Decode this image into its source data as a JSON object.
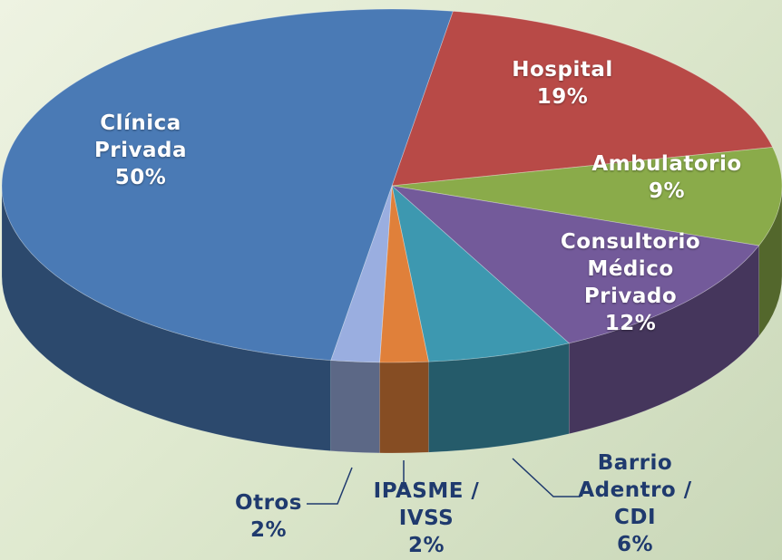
{
  "chart_data": {
    "type": "pie",
    "categories": [
      "Hospital",
      "Ambulatorio",
      "Consultorio Médico Privado",
      "Barrio Adentro / CDI",
      "IPASME / IVSS",
      "Otros",
      "Clínica Privada"
    ],
    "values": [
      19,
      9,
      12,
      6,
      2,
      2,
      50
    ],
    "value_labels": [
      "19%",
      "9%",
      "12%",
      "6%",
      "2%",
      "2%",
      "50%"
    ],
    "colors": [
      "#b84a47",
      "#8aab4a",
      "#735a9a",
      "#3d98b0",
      "#e0803a",
      "#9aaee0",
      "#4a7ab5"
    ]
  }
}
